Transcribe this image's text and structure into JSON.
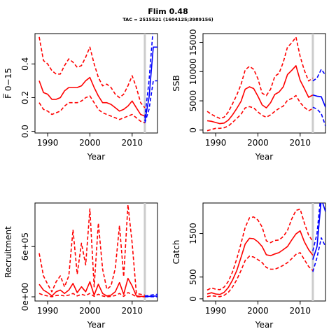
{
  "title": "Flim 0.48",
  "subtitle": "TAC = 2515521 (1604125;3989156)",
  "colors": {
    "historic": "#ff0000",
    "projection": "#0000ff",
    "marker": "#cccccc",
    "axes": "#000000"
  },
  "chart_data": [
    {
      "type": "line",
      "id": "fbar",
      "xlabel": "Year",
      "ylabel": "F̅ 0−15",
      "xlim": [
        1987,
        2016
      ],
      "ylim": [
        -0.01,
        0.58
      ],
      "xticks": [
        1990,
        2000,
        2010
      ],
      "yticks": [
        0.0,
        0.2,
        0.4
      ],
      "ytick_labels": [
        "0.0",
        "0.2",
        "0.4"
      ],
      "vline": 2013,
      "series": [
        {
          "role": "historic-median",
          "x": [
            1988,
            1989,
            1990,
            1991,
            1992,
            1993,
            1994,
            1995,
            1996,
            1997,
            1998,
            1999,
            2000,
            2001,
            2002,
            2003,
            2004,
            2005,
            2006,
            2007,
            2008,
            2009,
            2010,
            2011,
            2012,
            2013
          ],
          "values": [
            0.3,
            0.23,
            0.22,
            0.19,
            0.19,
            0.2,
            0.24,
            0.26,
            0.26,
            0.26,
            0.27,
            0.3,
            0.32,
            0.26,
            0.21,
            0.17,
            0.17,
            0.16,
            0.14,
            0.12,
            0.13,
            0.15,
            0.18,
            0.14,
            0.1,
            0.09
          ]
        },
        {
          "role": "historic-upper",
          "x": [
            1988,
            1989,
            1990,
            1991,
            1992,
            1993,
            1994,
            1995,
            1996,
            1997,
            1998,
            1999,
            2000,
            2001,
            2002,
            2003,
            2004,
            2005,
            2006,
            2007,
            2008,
            2009,
            2010,
            2011,
            2012,
            2013
          ],
          "values": [
            0.56,
            0.42,
            0.4,
            0.36,
            0.34,
            0.34,
            0.39,
            0.43,
            0.41,
            0.38,
            0.39,
            0.44,
            0.5,
            0.4,
            0.32,
            0.27,
            0.28,
            0.26,
            0.22,
            0.2,
            0.22,
            0.27,
            0.33,
            0.26,
            0.17,
            0.14
          ]
        },
        {
          "role": "historic-lower",
          "x": [
            1988,
            1989,
            1990,
            1991,
            1992,
            1993,
            1994,
            1995,
            1996,
            1997,
            1998,
            1999,
            2000,
            2001,
            2002,
            2003,
            2004,
            2005,
            2006,
            2007,
            2008,
            2009,
            2010,
            2011,
            2012,
            2013
          ],
          "values": [
            0.17,
            0.13,
            0.12,
            0.1,
            0.11,
            0.12,
            0.15,
            0.17,
            0.17,
            0.17,
            0.18,
            0.2,
            0.21,
            0.17,
            0.13,
            0.11,
            0.1,
            0.09,
            0.08,
            0.07,
            0.08,
            0.09,
            0.1,
            0.08,
            0.06,
            0.05
          ]
        },
        {
          "role": "projection-median",
          "x": [
            2013,
            2014,
            2015,
            2016
          ],
          "values": [
            0.06,
            0.2,
            0.5,
            0.5
          ]
        },
        {
          "role": "projection-upper",
          "x": [
            2013,
            2014,
            2015,
            2016
          ],
          "values": [
            0.08,
            0.3,
            0.62,
            0.62
          ]
        },
        {
          "role": "projection-lower",
          "x": [
            2013,
            2014,
            2015,
            2016
          ],
          "values": [
            0.05,
            0.13,
            0.3,
            0.3
          ]
        }
      ]
    },
    {
      "type": "line",
      "id": "ssb",
      "xlabel": "Year",
      "ylabel": "SSB",
      "xlim": [
        1987,
        2016
      ],
      "ylim": [
        -500,
        16500
      ],
      "xticks": [
        1990,
        2000,
        2010
      ],
      "yticks": [
        0,
        5000,
        10000,
        15000
      ],
      "ytick_labels": [
        "0",
        "5000",
        "10000",
        "15000"
      ],
      "vline": 2013,
      "series": [
        {
          "role": "historic-median",
          "x": [
            1988,
            1989,
            1990,
            1991,
            1992,
            1993,
            1994,
            1995,
            1996,
            1997,
            1998,
            1999,
            2000,
            2001,
            2002,
            2003,
            2004,
            2005,
            2006,
            2007,
            2008,
            2009,
            2010,
            2011,
            2012,
            2013
          ],
          "values": [
            1600,
            1500,
            1300,
            1100,
            1200,
            1700,
            2600,
            3700,
            4900,
            7000,
            7400,
            7100,
            5800,
            4300,
            3800,
            4700,
            6100,
            6500,
            7400,
            9500,
            10200,
            11000,
            8500,
            7100,
            5600,
            6000
          ]
        },
        {
          "role": "historic-upper",
          "x": [
            1988,
            1989,
            1990,
            1991,
            1992,
            1993,
            1994,
            1995,
            1996,
            1997,
            1998,
            1999,
            2000,
            2001,
            2002,
            2003,
            2004,
            2005,
            2006,
            2007,
            2008,
            2009,
            2010,
            2011,
            2012,
            2013
          ],
          "values": [
            3200,
            2700,
            2300,
            2000,
            2200,
            3100,
            4500,
            6000,
            7800,
            10300,
            10900,
            10400,
            8800,
            6300,
            5900,
            7000,
            9200,
            9700,
            11600,
            14200,
            14900,
            15900,
            12600,
            10200,
            8400,
            8900
          ]
        },
        {
          "role": "historic-lower",
          "x": [
            1988,
            1989,
            1990,
            1991,
            1992,
            1993,
            1994,
            1995,
            1996,
            1997,
            1998,
            1999,
            2000,
            2001,
            2002,
            2003,
            2004,
            2005,
            2006,
            2007,
            2008,
            2009,
            2010,
            2011,
            2012,
            2013
          ],
          "values": [
            -100,
            100,
            300,
            300,
            400,
            700,
            1300,
            2000,
            2700,
            3800,
            4000,
            3800,
            3100,
            2500,
            2200,
            2600,
            3200,
            3700,
            4100,
            5100,
            5400,
            5900,
            4700,
            3900,
            3300,
            3700
          ]
        },
        {
          "role": "projection-median",
          "x": [
            2013,
            2014,
            2015,
            2016
          ],
          "values": [
            6000,
            5800,
            5700,
            3900
          ]
        },
        {
          "role": "projection-upper",
          "x": [
            2013,
            2014,
            2015,
            2016
          ],
          "values": [
            8400,
            8900,
            10400,
            9400
          ]
        },
        {
          "role": "projection-lower",
          "x": [
            2013,
            2014,
            2015,
            2016
          ],
          "values": [
            3900,
            3600,
            2800,
            700
          ]
        }
      ]
    },
    {
      "type": "line",
      "id": "recruitment",
      "xlabel": "Year",
      "ylabel": "Recruitment",
      "xlim": [
        1987,
        2016
      ],
      "ylim": [
        -50000,
        1120000
      ],
      "xticks": [
        1990,
        2000,
        2010
      ],
      "yticks": [
        0,
        600000
      ],
      "ytick_labels": [
        "0e+00",
        "6e+05"
      ],
      "vline": 2013,
      "series": [
        {
          "role": "historic-median",
          "x": [
            1988,
            1989,
            1990,
            1991,
            1992,
            1993,
            1994,
            1995,
            1996,
            1997,
            1998,
            1999,
            2000,
            2001,
            2002,
            2003,
            2004,
            2005,
            2006,
            2007,
            2008,
            2009,
            2010,
            2011,
            2012,
            2013
          ],
          "values": [
            150000,
            80000,
            50000,
            10000,
            60000,
            80000,
            40000,
            80000,
            160000,
            50000,
            120000,
            60000,
            180000,
            20000,
            150000,
            40000,
            10000,
            20000,
            60000,
            170000,
            30000,
            220000,
            130000,
            10000,
            5000,
            5000
          ]
        },
        {
          "role": "historic-upper",
          "x": [
            1988,
            1989,
            1990,
            1991,
            1992,
            1993,
            1994,
            1995,
            1996,
            1997,
            1998,
            1999,
            2000,
            2001,
            2002,
            2003,
            2004,
            2005,
            2006,
            2007,
            2008,
            2009,
            2010,
            2011,
            2012,
            2013
          ],
          "values": [
            520000,
            250000,
            150000,
            60000,
            180000,
            250000,
            120000,
            250000,
            800000,
            270000,
            640000,
            380000,
            1050000,
            120000,
            880000,
            330000,
            90000,
            130000,
            340000,
            850000,
            240000,
            1100000,
            640000,
            40000,
            30000,
            20000
          ]
        },
        {
          "role": "historic-lower",
          "x": [
            1988,
            1989,
            1990,
            1991,
            1992,
            1993,
            1994,
            1995,
            1996,
            1997,
            1998,
            1999,
            2000,
            2001,
            2002,
            2003,
            2004,
            2005,
            2006,
            2007,
            2008,
            2009,
            2010,
            2011,
            2012,
            2013
          ],
          "values": [
            40000,
            20000,
            10000,
            0,
            15000,
            20000,
            10000,
            20000,
            40000,
            10000,
            30000,
            15000,
            40000,
            5000,
            30000,
            10000,
            0,
            5000,
            15000,
            40000,
            5000,
            50000,
            30000,
            0,
            0,
            0
          ]
        },
        {
          "role": "projection-median",
          "x": [
            2013,
            2014,
            2015,
            2016
          ],
          "values": [
            5000,
            5000,
            8000,
            10000
          ]
        },
        {
          "role": "projection-upper",
          "x": [
            2013,
            2014,
            2015,
            2016
          ],
          "values": [
            10000,
            15000,
            25000,
            30000
          ]
        },
        {
          "role": "projection-lower",
          "x": [
            2013,
            2014,
            2015,
            2016
          ],
          "values": [
            0,
            0,
            0,
            0
          ]
        }
      ]
    },
    {
      "type": "line",
      "id": "catch",
      "xlabel": "Year",
      "ylabel": "Catch",
      "xlim": [
        1987,
        2016
      ],
      "ylim": [
        -50,
        2200
      ],
      "xticks": [
        1990,
        2000,
        2010
      ],
      "yticks": [
        0,
        500,
        1500
      ],
      "ytick_labels": [
        "0",
        "500",
        "1500"
      ],
      "vline": 2013,
      "series": [
        {
          "role": "historic-median",
          "x": [
            1988,
            1989,
            1990,
            1991,
            1992,
            1993,
            1994,
            1995,
            1996,
            1997,
            1998,
            1999,
            2000,
            2001,
            2002,
            2003,
            2004,
            2005,
            2006,
            2007,
            2008,
            2009,
            2010,
            2011,
            2012,
            2013
          ],
          "values": [
            110,
            140,
            110,
            100,
            150,
            260,
            430,
            650,
            950,
            1260,
            1390,
            1380,
            1310,
            1200,
            1010,
            990,
            1030,
            1060,
            1130,
            1200,
            1350,
            1490,
            1560,
            1310,
            1130,
            1000
          ]
        },
        {
          "role": "historic-upper",
          "x": [
            1988,
            1989,
            1990,
            1991,
            1992,
            1993,
            1994,
            1995,
            1996,
            1997,
            1998,
            1999,
            2000,
            2001,
            2002,
            2003,
            2004,
            2005,
            2006,
            2007,
            2008,
            2009,
            2010,
            2011,
            2012,
            2013
          ],
          "values": [
            200,
            250,
            220,
            210,
            270,
            400,
            620,
            920,
            1270,
            1640,
            1860,
            1880,
            1810,
            1650,
            1330,
            1290,
            1340,
            1350,
            1430,
            1570,
            1830,
            2030,
            2060,
            1740,
            1460,
            1320
          ]
        },
        {
          "role": "historic-lower",
          "x": [
            1988,
            1989,
            1990,
            1991,
            1992,
            1993,
            1994,
            1995,
            1996,
            1997,
            1998,
            1999,
            2000,
            2001,
            2002,
            2003,
            2004,
            2005,
            2006,
            2007,
            2008,
            2009,
            2010,
            2011,
            2012,
            2013
          ],
          "values": [
            50,
            70,
            60,
            50,
            80,
            150,
            270,
            440,
            650,
            880,
            980,
            960,
            900,
            830,
            720,
            680,
            680,
            720,
            770,
            830,
            920,
            1020,
            1060,
            900,
            740,
            650
          ]
        },
        {
          "role": "projection-median",
          "x": [
            2013,
            2014,
            2015,
            2016
          ],
          "values": [
            900,
            1200,
            2300,
            2000
          ]
        },
        {
          "role": "projection-upper",
          "x": [
            2013,
            2014,
            2015,
            2016
          ],
          "values": [
            1100,
            1500,
            2500,
            2300
          ]
        },
        {
          "role": "projection-lower",
          "x": [
            2013,
            2014,
            2015,
            2016
          ],
          "values": [
            620,
            950,
            1400,
            1200
          ]
        }
      ]
    }
  ]
}
